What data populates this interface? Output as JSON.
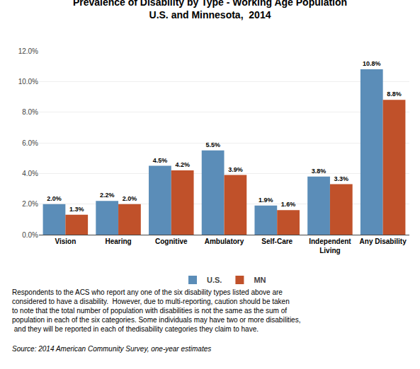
{
  "chart_data": {
    "type": "bar",
    "title": "Prevalence of Disability by Type - Working Age Population",
    "subtitle": "U.S. and Minnesota,  2014",
    "categories": [
      "Vision",
      "Hearing",
      "Cognitive",
      "Ambulatory",
      "Self-Care",
      "Independent\nLiving",
      "Any Disability"
    ],
    "series": [
      {
        "name": "U.S.",
        "color": "#5B8DB8",
        "values": [
          2.0,
          2.2,
          4.5,
          5.5,
          1.9,
          3.8,
          10.8
        ],
        "value_labels": [
          "2.0%",
          "2.2%",
          "4.5%",
          "5.5%",
          "1.9%",
          "3.8%",
          "10.8%"
        ]
      },
      {
        "name": "MN",
        "color": "#C0512A",
        "values": [
          1.3,
          2.0,
          4.2,
          3.9,
          1.6,
          3.3,
          8.8
        ],
        "value_labels": [
          "1.3%",
          "2.0%",
          "4.2%",
          "3.9%",
          "1.6%",
          "3.3%",
          "8.8%"
        ]
      }
    ],
    "ylim": [
      0,
      12.0
    ],
    "yticks": [
      {
        "value": 0,
        "label": "0.0%"
      },
      {
        "value": 2.0,
        "label": "2.0%"
      },
      {
        "value": 4.0,
        "label": "4.0%"
      },
      {
        "value": 6.0,
        "label": "6.0%"
      },
      {
        "value": 8.0,
        "label": "8.0%"
      },
      {
        "value": 10.0,
        "label": "10.0%"
      },
      {
        "value": 12.0,
        "label": "12.0%"
      }
    ],
    "grid": true,
    "legend": "bottom",
    "data_labels": true,
    "annotations": [
      "Respondents to the ACS who report any one of the six disability types listed above are\nconsidered to have a disability.  However, due to multi-reporting, caution should be taken\nto note that the total number of population with disabilities is not the same as the sum of\npopulation in each of the six categories. Some individuals may have two or more disabilities,\n and they will be reported in each of thedisability categories they claim to have.",
      "Source: 2014 American Community Survey, one-year estimates"
    ]
  }
}
